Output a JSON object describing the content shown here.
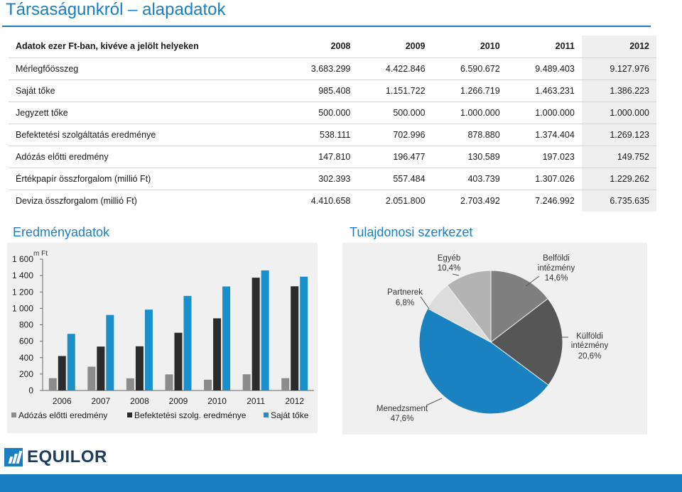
{
  "page": {
    "title": "Társaságunkról – alapadatok"
  },
  "table": {
    "header_label": "Adatok ezer Ft-ban, kivéve a jelölt helyeken",
    "years": [
      "2008",
      "2009",
      "2010",
      "2011",
      "2012"
    ],
    "rows": [
      {
        "label": "Mérlegfőösszeg",
        "values": [
          "3.683.299",
          "4.422.846",
          "6.590.672",
          "9.489.403",
          "9.127.976"
        ]
      },
      {
        "label": "Saját tőke",
        "values": [
          "985.408",
          "1.151.722",
          "1.266.719",
          "1.463.231",
          "1.386.223"
        ]
      },
      {
        "label": "Jegyzett tőke",
        "values": [
          "500.000",
          "500.000",
          "1.000.000",
          "1.000.000",
          "1.000.000"
        ]
      },
      {
        "label": "Befektetési szolgáltatás eredménye",
        "values": [
          "538.111",
          "702.996",
          "878.880",
          "1.374.404",
          "1.269.123"
        ]
      },
      {
        "label": "Adózás előtti eredmény",
        "values": [
          "147.810",
          "196.477",
          "130.589",
          "197.023",
          "149.752"
        ]
      },
      {
        "label": "Értékpapír összforgalom (millió Ft)",
        "values": [
          "302.393",
          "557.484",
          "403.739",
          "1.307.026",
          "1.229.262"
        ]
      },
      {
        "label": "Deviza összforgalom (millió Ft)",
        "values": [
          "4.410.658",
          "2.051.800",
          "2.703.492",
          "7.246.992",
          "6.735.635"
        ]
      }
    ]
  },
  "sections": {
    "results_title": "Eredményadatok",
    "ownership_title": "Tulajdonosi szerkezet"
  },
  "chart_data": [
    {
      "type": "bar",
      "title": "",
      "ylabel": "m Ft",
      "ylim": [
        0,
        1600
      ],
      "yticks": [
        "0",
        "200",
        "400",
        "600",
        "800",
        "1 000",
        "1 200",
        "1 400",
        "1 600"
      ],
      "categories": [
        "2006",
        "2007",
        "2008",
        "2009",
        "2010",
        "2011",
        "2012"
      ],
      "series": [
        {
          "name": "Adózás előtti eredmény",
          "color": "#8c8c8c",
          "values": [
            150,
            290,
            148,
            196,
            131,
            197,
            150
          ]
        },
        {
          "name": "Befektetési szolg. eredménye",
          "color": "#2b2b2b",
          "values": [
            420,
            535,
            538,
            703,
            879,
            1374,
            1269
          ]
        },
        {
          "name": "Saját tőke",
          "color": "#1a8fcc",
          "values": [
            690,
            920,
            985,
            1152,
            1267,
            1463,
            1386
          ]
        }
      ],
      "legend": "bottom",
      "grid": false
    },
    {
      "type": "pie",
      "title": "",
      "slices": [
        {
          "name": "Belföldi intézmény",
          "value": 14.6,
          "label": "14,6%",
          "color": "#7f7f7f"
        },
        {
          "name": "Külföldi intézmény",
          "value": 20.6,
          "label": "20,6%",
          "color": "#565656"
        },
        {
          "name": "Menedzsment",
          "value": 47.6,
          "label": "47,6%",
          "color": "#1a82c0"
        },
        {
          "name": "Partnerek",
          "value": 6.8,
          "label": "6,8%",
          "color": "#dcdcdc"
        },
        {
          "name": "Egyéb",
          "value": 10.4,
          "label": "10,4%",
          "color": "#b3b3b3"
        }
      ]
    }
  ],
  "branding": {
    "logo_text": "EQUILOR",
    "accent_color": "#1a7fc1"
  }
}
